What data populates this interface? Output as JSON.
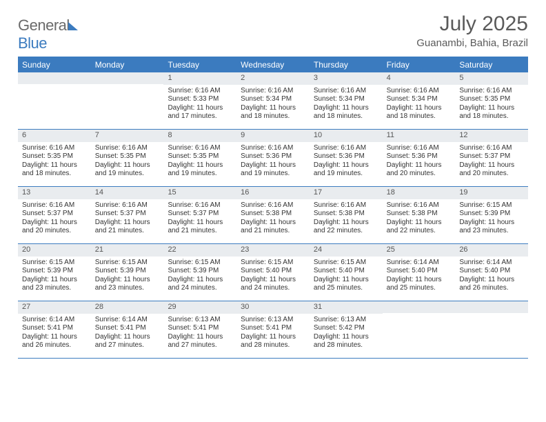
{
  "logo": {
    "part1": "General",
    "part2": "Blue"
  },
  "title": "July 2025",
  "location": "Guanambi, Bahia, Brazil",
  "colors": {
    "accent": "#3b7bbf",
    "daynum_bg": "#e9ecef",
    "text": "#333333",
    "header_text": "#5a5a5a"
  },
  "days_of_week": [
    "Sunday",
    "Monday",
    "Tuesday",
    "Wednesday",
    "Thursday",
    "Friday",
    "Saturday"
  ],
  "weeks": [
    [
      null,
      null,
      {
        "n": "1",
        "sunrise": "6:16 AM",
        "sunset": "5:33 PM",
        "daylight": "11 hours and 17 minutes."
      },
      {
        "n": "2",
        "sunrise": "6:16 AM",
        "sunset": "5:34 PM",
        "daylight": "11 hours and 18 minutes."
      },
      {
        "n": "3",
        "sunrise": "6:16 AM",
        "sunset": "5:34 PM",
        "daylight": "11 hours and 18 minutes."
      },
      {
        "n": "4",
        "sunrise": "6:16 AM",
        "sunset": "5:34 PM",
        "daylight": "11 hours and 18 minutes."
      },
      {
        "n": "5",
        "sunrise": "6:16 AM",
        "sunset": "5:35 PM",
        "daylight": "11 hours and 18 minutes."
      }
    ],
    [
      {
        "n": "6",
        "sunrise": "6:16 AM",
        "sunset": "5:35 PM",
        "daylight": "11 hours and 18 minutes."
      },
      {
        "n": "7",
        "sunrise": "6:16 AM",
        "sunset": "5:35 PM",
        "daylight": "11 hours and 19 minutes."
      },
      {
        "n": "8",
        "sunrise": "6:16 AM",
        "sunset": "5:35 PM",
        "daylight": "11 hours and 19 minutes."
      },
      {
        "n": "9",
        "sunrise": "6:16 AM",
        "sunset": "5:36 PM",
        "daylight": "11 hours and 19 minutes."
      },
      {
        "n": "10",
        "sunrise": "6:16 AM",
        "sunset": "5:36 PM",
        "daylight": "11 hours and 19 minutes."
      },
      {
        "n": "11",
        "sunrise": "6:16 AM",
        "sunset": "5:36 PM",
        "daylight": "11 hours and 20 minutes."
      },
      {
        "n": "12",
        "sunrise": "6:16 AM",
        "sunset": "5:37 PM",
        "daylight": "11 hours and 20 minutes."
      }
    ],
    [
      {
        "n": "13",
        "sunrise": "6:16 AM",
        "sunset": "5:37 PM",
        "daylight": "11 hours and 20 minutes."
      },
      {
        "n": "14",
        "sunrise": "6:16 AM",
        "sunset": "5:37 PM",
        "daylight": "11 hours and 21 minutes."
      },
      {
        "n": "15",
        "sunrise": "6:16 AM",
        "sunset": "5:37 PM",
        "daylight": "11 hours and 21 minutes."
      },
      {
        "n": "16",
        "sunrise": "6:16 AM",
        "sunset": "5:38 PM",
        "daylight": "11 hours and 21 minutes."
      },
      {
        "n": "17",
        "sunrise": "6:16 AM",
        "sunset": "5:38 PM",
        "daylight": "11 hours and 22 minutes."
      },
      {
        "n": "18",
        "sunrise": "6:16 AM",
        "sunset": "5:38 PM",
        "daylight": "11 hours and 22 minutes."
      },
      {
        "n": "19",
        "sunrise": "6:15 AM",
        "sunset": "5:39 PM",
        "daylight": "11 hours and 23 minutes."
      }
    ],
    [
      {
        "n": "20",
        "sunrise": "6:15 AM",
        "sunset": "5:39 PM",
        "daylight": "11 hours and 23 minutes."
      },
      {
        "n": "21",
        "sunrise": "6:15 AM",
        "sunset": "5:39 PM",
        "daylight": "11 hours and 23 minutes."
      },
      {
        "n": "22",
        "sunrise": "6:15 AM",
        "sunset": "5:39 PM",
        "daylight": "11 hours and 24 minutes."
      },
      {
        "n": "23",
        "sunrise": "6:15 AM",
        "sunset": "5:40 PM",
        "daylight": "11 hours and 24 minutes."
      },
      {
        "n": "24",
        "sunrise": "6:15 AM",
        "sunset": "5:40 PM",
        "daylight": "11 hours and 25 minutes."
      },
      {
        "n": "25",
        "sunrise": "6:14 AM",
        "sunset": "5:40 PM",
        "daylight": "11 hours and 25 minutes."
      },
      {
        "n": "26",
        "sunrise": "6:14 AM",
        "sunset": "5:40 PM",
        "daylight": "11 hours and 26 minutes."
      }
    ],
    [
      {
        "n": "27",
        "sunrise": "6:14 AM",
        "sunset": "5:41 PM",
        "daylight": "11 hours and 26 minutes."
      },
      {
        "n": "28",
        "sunrise": "6:14 AM",
        "sunset": "5:41 PM",
        "daylight": "11 hours and 27 minutes."
      },
      {
        "n": "29",
        "sunrise": "6:13 AM",
        "sunset": "5:41 PM",
        "daylight": "11 hours and 27 minutes."
      },
      {
        "n": "30",
        "sunrise": "6:13 AM",
        "sunset": "5:41 PM",
        "daylight": "11 hours and 28 minutes."
      },
      {
        "n": "31",
        "sunrise": "6:13 AM",
        "sunset": "5:42 PM",
        "daylight": "11 hours and 28 minutes."
      },
      null,
      null
    ]
  ],
  "labels": {
    "sunrise": "Sunrise: ",
    "sunset": "Sunset: ",
    "daylight": "Daylight: "
  }
}
